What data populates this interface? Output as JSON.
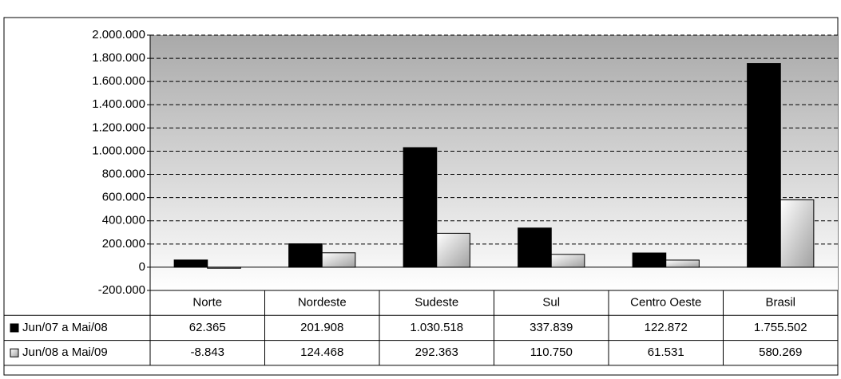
{
  "chart_data": {
    "type": "bar",
    "categories": [
      "Norte",
      "Nordeste",
      "Sudeste",
      "Sul",
      "Centro Oeste",
      "Brasil"
    ],
    "series": [
      {
        "name": "Jun/07 a Mai/08",
        "color": "#000000",
        "values": [
          62365,
          201908,
          1030518,
          337839,
          122872,
          1755502
        ],
        "value_labels": [
          "62.365",
          "201.908",
          "1.030.518",
          "337.839",
          "122.872",
          "1.755.502"
        ]
      },
      {
        "name": "Jun/08 a Mai/09",
        "color": "#a0a0a0",
        "values": [
          -8843,
          124468,
          292363,
          110750,
          61531,
          580269
        ],
        "value_labels": [
          "-8.843",
          "124.468",
          "292.363",
          "110.750",
          "61.531",
          "580.269"
        ]
      }
    ],
    "ylim": [
      -200000,
      2000000
    ],
    "yticks": [
      {
        "value": -200000,
        "label": "-200.000"
      },
      0,
      {
        "value": 200000,
        "label": "200.000"
      },
      {
        "value": 400000,
        "label": "400.000"
      },
      {
        "value": 600000,
        "label": "600.000"
      },
      {
        "value": 800000,
        "label": "800.000"
      },
      {
        "value": 1000000,
        "label": "1.000.000"
      },
      {
        "value": 1200000,
        "label": "1.200.000"
      },
      {
        "value": 1400000,
        "label": "1.400.000"
      },
      {
        "value": 1600000,
        "label": "1.600.000"
      },
      {
        "value": 1800000,
        "label": "1.800.000"
      },
      {
        "value": 2000000,
        "label": "2.000.000"
      }
    ],
    "grid": true
  }
}
